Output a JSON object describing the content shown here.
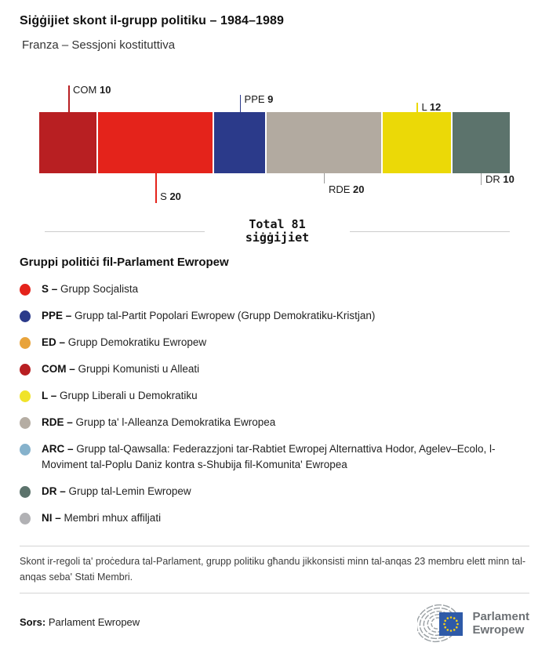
{
  "header": {
    "title": "Siġġijiet skont il-grupp politiku – 1984–1989",
    "subtitle": "Franza – Sessjoni kostituttiva"
  },
  "chart_data": {
    "type": "bar",
    "stacked": true,
    "orientation": "horizontal",
    "total": 81,
    "segments": [
      {
        "code": "COM",
        "value": 10,
        "color": "#B81F22",
        "callout": {
          "side": "top",
          "line_len": 34,
          "label_dy": -35,
          "line_color": "#B81F22"
        }
      },
      {
        "code": "S",
        "value": 20,
        "color": "#E4231B",
        "callout": {
          "side": "bottom",
          "line_len": 38,
          "label_dy": 23,
          "line_color": "#E4231B"
        }
      },
      {
        "code": "PPE",
        "value": 9,
        "color": "#2B3A8A",
        "callout": {
          "side": "top",
          "line_len": 22,
          "label_dy": -23,
          "line_color": "#2B3A8A"
        }
      },
      {
        "code": "RDE",
        "value": 20,
        "color": "#B2AAA0",
        "callout": {
          "side": "bottom",
          "line_len": 13,
          "label_dy": 14,
          "line_color": "#9b9b9b"
        }
      },
      {
        "code": "L",
        "value": 12,
        "color": "#EBD907",
        "callout": {
          "side": "top",
          "line_len": 12,
          "label_dy": -13,
          "line_color": "#EBD907"
        }
      },
      {
        "code": "DR",
        "value": 10,
        "color": "#5C736C",
        "callout": {
          "side": "bottom",
          "line_len": 15,
          "label_dy": 1,
          "line_color": "#9b9b9b"
        }
      }
    ]
  },
  "total_box": {
    "text": "Total 81\nsiġġijiet"
  },
  "legend": {
    "heading": "Gruppi politiċi fil-Parlament Ewropew",
    "items": [
      {
        "code": "S –",
        "label": "Grupp Socjalista",
        "color": "#E4231B"
      },
      {
        "code": "PPE –",
        "label": "Grupp tal-Partit Popolari Ewropew (Grupp Demokratiku-Kristjan)",
        "color": "#2B3A8A"
      },
      {
        "code": "ED –",
        "label": "Grupp Demokratiku Ewropew",
        "color": "#E8A33B"
      },
      {
        "code": "COM –",
        "label": "Gruppi Komunisti u Alleati",
        "color": "#B81F22"
      },
      {
        "code": "L –",
        "label": "Grupp Liberali u Demokratiku",
        "color": "#F0E32A"
      },
      {
        "code": "RDE –",
        "label": "Grupp ta' l-Alleanza Demokratika Ewropea",
        "color": "#B5ADA3"
      },
      {
        "code": "ARC –",
        "label": "Grupp tal-Qawsalla: Federazzjoni tar-Rabtiet Ewropej Alternattiva Hodor, Agelev–Ecolo, l-Moviment tal-Poplu Daniz kontra s-Shubija fil-Komunita' Ewropea",
        "color": "#86B2CC"
      },
      {
        "code": "DR –",
        "label": "Grupp tal-Lemin Ewropew",
        "color": "#5C736C"
      },
      {
        "code": "NI –",
        "label": "Membri mhux affiljati",
        "color": "#B1B1B4"
      }
    ]
  },
  "footnote": "Skont ir-regoli ta' proċedura tal-Parlament, grupp politiku għandu jikkonsisti minn tal-anqas 23 membru elett minn tal-anqas seba' Stati Membri.",
  "source": {
    "label": "Sors:",
    "value": " Parlament Ewropew"
  },
  "logo": {
    "line1": "Parlament",
    "line2": "Ewropew"
  }
}
